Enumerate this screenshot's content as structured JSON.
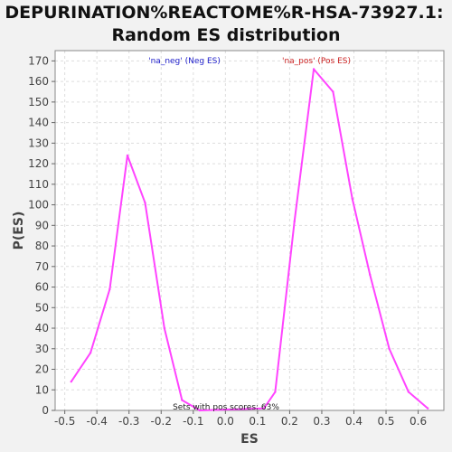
{
  "chart_data": {
    "type": "line",
    "title": [
      "DEPURINATION%REACTOME%R-HSA-73927.1:",
      "Random ES distribution"
    ],
    "xlabel": "ES",
    "ylabel": "P(ES)",
    "xlim": [
      -0.53,
      0.68
    ],
    "ylim": [
      0,
      175
    ],
    "xticks": [
      -0.5,
      -0.4,
      -0.3,
      -0.2,
      -0.1,
      0.0,
      0.1,
      0.2,
      0.3,
      0.4,
      0.5,
      0.6
    ],
    "xtick_labels": [
      "-0.5",
      "-0.4",
      "-0.3",
      "-0.2",
      "-0.1",
      "0.0",
      "0.1",
      "0.2",
      "0.3",
      "0.4",
      "0.5",
      "0.6"
    ],
    "yticks": [
      0,
      10,
      20,
      30,
      40,
      50,
      60,
      70,
      80,
      90,
      100,
      110,
      120,
      130,
      140,
      150,
      160,
      170
    ],
    "ytick_labels": [
      "0",
      "10",
      "20",
      "30",
      "40",
      "50",
      "60",
      "70",
      "80",
      "90",
      "100",
      "110",
      "120",
      "130",
      "140",
      "150",
      "160",
      "170"
    ],
    "grid": true,
    "legend_placement": "top",
    "colors": {
      "line": "#ff44ff",
      "neg_legend": "#2222cc",
      "pos_legend": "#cc2222",
      "plot_background": "#ffffff",
      "page_background": "#f2f2f2",
      "grid": "#dddddd",
      "frame": "#888888"
    },
    "legend": {
      "neg": "'na_neg' (Neg ES)",
      "pos": "'na_pos' (Pos ES)"
    },
    "annotation": "Sets with pos scores: 63%",
    "series": [
      {
        "x": [
          -0.48,
          -0.42,
          -0.36,
          -0.305,
          -0.25,
          -0.19,
          -0.135,
          -0.08,
          0.12,
          0.155,
          0.215,
          0.275,
          0.335,
          0.395,
          0.45,
          0.51,
          0.57,
          0.63
        ],
        "y": [
          14,
          28,
          59,
          124,
          101,
          40,
          5,
          0,
          1,
          9,
          92,
          166,
          155,
          103,
          66,
          30,
          9,
          1
        ]
      }
    ]
  }
}
